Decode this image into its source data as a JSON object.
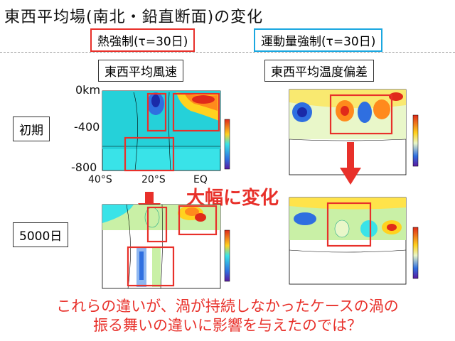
{
  "title": "東西平均場(南北・鉛直断面)の変化",
  "forcing": {
    "thermal": "熱強制(τ=30日)",
    "momentum": "運動量強制(τ=30日)"
  },
  "columns": {
    "wind": "東西平均風速",
    "temperature": "東西平均温度偏差"
  },
  "rows": {
    "initial": "初期",
    "day5000": "5000日"
  },
  "axis": {
    "top": "0km",
    "mid": "-400",
    "bottom": "-800",
    "lat_40s": "40°S",
    "lat_20s": "20°S",
    "lat_eq": "EQ"
  },
  "annotation": "大幅に変化",
  "conclusion": {
    "line1": "これらの違いが、渦が持続しなかったケースの渦の",
    "line2": "振る舞いの違いに影響を与えたのでは？"
  },
  "colors": {
    "red": "#e8302a",
    "cyan": "#1aa7e0"
  }
}
